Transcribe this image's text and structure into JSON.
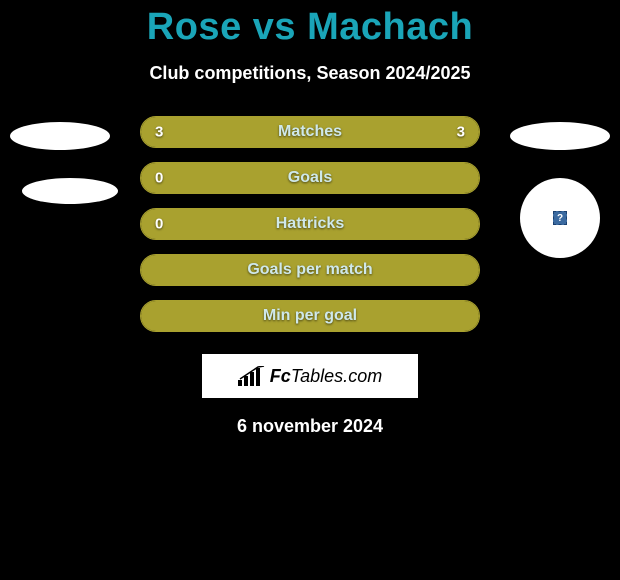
{
  "title": "Rose vs Machach",
  "subtitle": "Club competitions, Season 2024/2025",
  "colors": {
    "title": "#1aa5b8",
    "bar_fill": "#a9a12f",
    "bar_border": "#a9a12f",
    "label_text": "#cfe8ea",
    "background": "#000000"
  },
  "rows": [
    {
      "label": "Matches",
      "left": "3",
      "right": "3",
      "left_fill_pct": 50,
      "right_fill_pct": 50
    },
    {
      "label": "Goals",
      "left": "0",
      "right": "",
      "left_fill_pct": 100,
      "right_fill_pct": 0
    },
    {
      "label": "Hattricks",
      "left": "0",
      "right": "",
      "left_fill_pct": 100,
      "right_fill_pct": 0
    },
    {
      "label": "Goals per match",
      "left": "",
      "right": "",
      "left_fill_pct": 100,
      "right_fill_pct": 0
    },
    {
      "label": "Min per goal",
      "left": "",
      "right": "",
      "left_fill_pct": 100,
      "right_fill_pct": 0
    }
  ],
  "logo": {
    "brand_bold": "Fc",
    "brand_rest": "Tables.com"
  },
  "date": "6 november 2024",
  "avatar_placeholder_glyph": "?"
}
